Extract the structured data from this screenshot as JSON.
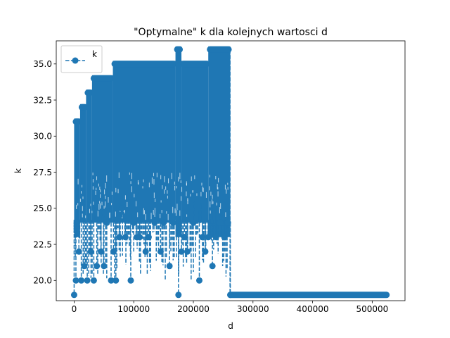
{
  "chart_data": {
    "type": "line",
    "title": "\"Optymalne\" k dla kolejnych wartosci d",
    "xlabel": "d",
    "ylabel": "k",
    "xlim": [
      -30000,
      555000
    ],
    "ylim": [
      18.6,
      36.6
    ],
    "xticks": [
      0,
      100000,
      200000,
      300000,
      400000,
      500000
    ],
    "xtick_labels": [
      "0",
      "100000",
      "200000",
      "300000",
      "400000",
      "500000"
    ],
    "yticks": [
      20.0,
      22.5,
      25.0,
      27.5,
      30.0,
      32.5,
      35.0
    ],
    "ytick_labels": [
      "20.0",
      "22.5",
      "25.0",
      "27.5",
      "30.0",
      "32.5",
      "35.0"
    ],
    "grid": false,
    "legend": "top-left",
    "series": [
      {
        "name": "k",
        "color": "#1f77b4",
        "marker": "o",
        "linestyle": "dashed",
        "segments": [
          {
            "x_start": 0,
            "x_end": 10000,
            "y_min": 19,
            "y_max": 31
          },
          {
            "x_start": 10000,
            "x_end": 20000,
            "y_min": 20,
            "y_max": 32
          },
          {
            "x_start": 20000,
            "x_end": 30000,
            "y_min": 20,
            "y_max": 33
          },
          {
            "x_start": 30000,
            "x_end": 65000,
            "y_min": 20,
            "y_max": 34
          },
          {
            "x_start": 65000,
            "x_end": 170000,
            "y_min": 20,
            "y_max": 35
          },
          {
            "x_start": 170000,
            "x_end": 180000,
            "y_min": 19,
            "y_max": 36
          },
          {
            "x_start": 180000,
            "x_end": 225000,
            "y_min": 20,
            "y_max": 35
          },
          {
            "x_start": 225000,
            "x_end": 262000,
            "y_min": 19,
            "y_max": 36
          },
          {
            "x_start": 262000,
            "x_end": 524000,
            "y_min": 19,
            "y_max": 19
          }
        ],
        "low_points": [
          {
            "x": 0,
            "y": 19
          },
          {
            "x": 3000,
            "y": 20
          },
          {
            "x": 8000,
            "y": 22
          },
          {
            "x": 12000,
            "y": 20
          },
          {
            "x": 17000,
            "y": 21
          },
          {
            "x": 22000,
            "y": 20
          },
          {
            "x": 28000,
            "y": 22
          },
          {
            "x": 33000,
            "y": 20
          },
          {
            "x": 38000,
            "y": 21
          },
          {
            "x": 45000,
            "y": 22
          },
          {
            "x": 50000,
            "y": 21
          },
          {
            "x": 55000,
            "y": 24
          },
          {
            "x": 62000,
            "y": 20
          },
          {
            "x": 66000,
            "y": 22
          },
          {
            "x": 70000,
            "y": 20
          },
          {
            "x": 76000,
            "y": 23
          },
          {
            "x": 80000,
            "y": 25
          },
          {
            "x": 86000,
            "y": 23
          },
          {
            "x": 95000,
            "y": 20
          },
          {
            "x": 100000,
            "y": 24
          },
          {
            "x": 105000,
            "y": 23
          },
          {
            "x": 110000,
            "y": 23
          },
          {
            "x": 120000,
            "y": 22
          },
          {
            "x": 125000,
            "y": 23
          },
          {
            "x": 135000,
            "y": 24
          },
          {
            "x": 145000,
            "y": 22
          },
          {
            "x": 150000,
            "y": 24
          },
          {
            "x": 160000,
            "y": 21
          },
          {
            "x": 166000,
            "y": 24
          },
          {
            "x": 175000,
            "y": 19
          },
          {
            "x": 180000,
            "y": 22
          },
          {
            "x": 185000,
            "y": 23
          },
          {
            "x": 190000,
            "y": 22
          },
          {
            "x": 200000,
            "y": 24
          },
          {
            "x": 210000,
            "y": 20
          },
          {
            "x": 215000,
            "y": 23
          },
          {
            "x": 220000,
            "y": 22
          },
          {
            "x": 225000,
            "y": 23
          },
          {
            "x": 232000,
            "y": 21
          },
          {
            "x": 238000,
            "y": 23
          },
          {
            "x": 245000,
            "y": 24
          },
          {
            "x": 252000,
            "y": 23
          },
          {
            "x": 258000,
            "y": 24
          },
          {
            "x": 262000,
            "y": 19
          }
        ]
      }
    ]
  }
}
